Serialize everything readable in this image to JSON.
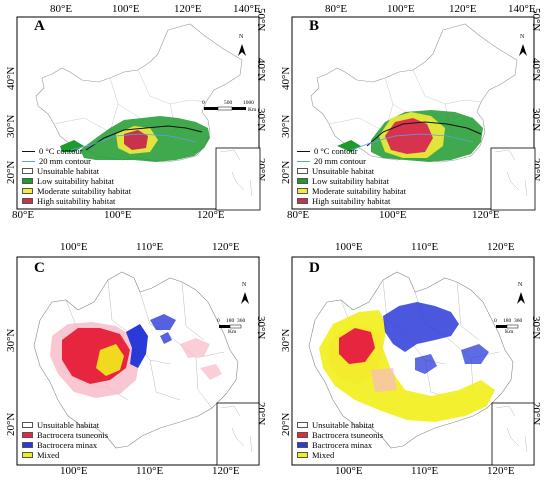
{
  "colors": {
    "low": "#1e9a2e",
    "moderate": "#f3ea3a",
    "high": "#c8324a",
    "tsuneonis": "#e8253f",
    "minax": "#2a3ad8",
    "mixed": "#f2ee1a",
    "pink_fringe": "#f6b9c6",
    "contour0": "#111111",
    "contour20": "#5aa0e6"
  },
  "panels": [
    {
      "letter": "A",
      "top_ticks": [
        "80°E",
        "100°E",
        "120°E",
        "140°E"
      ],
      "bottom_ticks": [
        "80°E",
        "100°E",
        "120°E"
      ],
      "left_ticks": [
        "40°N",
        "30°N",
        "20°N"
      ],
      "right_ticks": [
        "50°N",
        "40°N",
        "30°N",
        "20°N"
      ],
      "legend": [
        "0 °C contour",
        "20 mm contour",
        "Unsuitable habitat",
        "Low suitability habitat",
        "Moderate suitability habitat",
        "High suitability habitat"
      ],
      "scale": [
        "0",
        "500",
        "1000",
        "Km"
      ],
      "north": "N"
    },
    {
      "letter": "B",
      "top_ticks": [
        "80°E",
        "100°E",
        "120°E",
        "140°E"
      ],
      "bottom_ticks": [
        "80°E",
        "100°E",
        "120°E"
      ],
      "left_ticks": [
        "40°N",
        "30°N",
        "20°N"
      ],
      "right_ticks": [
        "50°N",
        "40°N",
        "30°N",
        "20°N"
      ],
      "legend": [
        "0 °C contour",
        "20 mm contour",
        "Unsuitable habitat",
        "Low suitability habitat",
        "Moderate suitability habitat",
        "High suitability habitat"
      ],
      "north": "N"
    },
    {
      "letter": "C",
      "top_ticks": [
        "100°E",
        "110°E",
        "120°E"
      ],
      "bottom_ticks": [
        "100°E",
        "110°E",
        "120°E"
      ],
      "left_ticks": [
        "30°N",
        "20°N"
      ],
      "right_ticks": [
        "30°N",
        "20°N"
      ],
      "legend": [
        "Unsuitable habitat",
        "Bactrocera tsuneonis",
        "Bactrocera minax",
        "Mixed"
      ],
      "scale": [
        "0",
        "180",
        "360",
        "Km"
      ],
      "north": "N"
    },
    {
      "letter": "D",
      "top_ticks": [
        "100°E",
        "110°E",
        "120°E"
      ],
      "bottom_ticks": [
        "100°E",
        "110°E",
        "120°E"
      ],
      "left_ticks": [
        "30°N",
        "20°N"
      ],
      "right_ticks": [
        "30°N",
        "20°N"
      ],
      "legend": [
        "Unsuitable habitat",
        "Bactrocera tsuneonis",
        "Bactrocera minax",
        "Mixed"
      ],
      "scale": [
        "0",
        "180",
        "360",
        "Km"
      ],
      "north": "N"
    }
  ]
}
